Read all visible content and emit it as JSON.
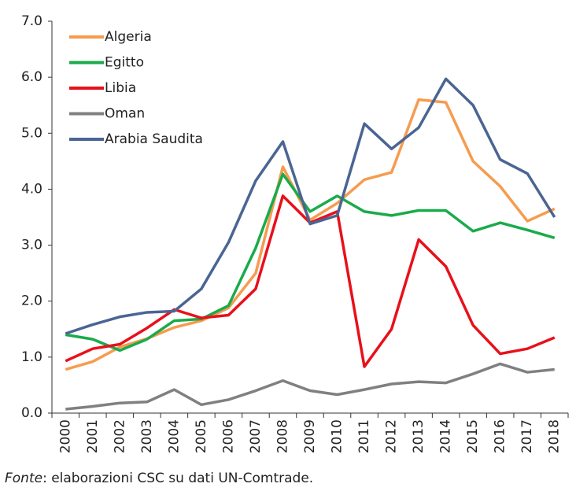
{
  "chart_data": {
    "type": "line",
    "x": [
      "2000",
      "2001",
      "2002",
      "2003",
      "2004",
      "2005",
      "2006",
      "2007",
      "2008",
      "2009",
      "2010",
      "2011",
      "2012",
      "2013",
      "2014",
      "2015",
      "2016",
      "2017",
      "2018"
    ],
    "series": [
      {
        "name": "Algeria",
        "color": "#f79b4f",
        "values": [
          0.78,
          0.92,
          1.18,
          1.33,
          1.53,
          1.65,
          1.88,
          2.5,
          4.4,
          3.45,
          3.75,
          4.17,
          4.3,
          5.6,
          5.55,
          4.5,
          4.05,
          3.43,
          3.65
        ]
      },
      {
        "name": "Egitto",
        "color": "#1aab4b",
        "values": [
          1.4,
          1.32,
          1.12,
          1.32,
          1.65,
          1.68,
          1.92,
          2.95,
          4.27,
          3.6,
          3.88,
          3.6,
          3.53,
          3.62,
          3.62,
          3.25,
          3.4,
          3.27,
          3.13
        ]
      },
      {
        "name": "Libia",
        "color": "#e8101a",
        "values": [
          0.93,
          1.15,
          1.23,
          1.52,
          1.85,
          1.7,
          1.75,
          2.22,
          3.88,
          3.4,
          3.6,
          0.83,
          1.5,
          3.1,
          2.62,
          1.57,
          1.06,
          1.15,
          1.35
        ]
      },
      {
        "name": "Oman",
        "color": "#808080",
        "values": [
          0.07,
          0.12,
          0.18,
          0.2,
          0.42,
          0.15,
          0.24,
          0.4,
          0.58,
          0.4,
          0.33,
          0.42,
          0.52,
          0.56,
          0.54,
          0.7,
          0.88,
          0.73,
          0.78
        ]
      },
      {
        "name": "Arabia Saudita",
        "color": "#4a6593",
        "values": [
          1.42,
          1.58,
          1.72,
          1.8,
          1.82,
          2.22,
          3.05,
          4.15,
          4.85,
          3.38,
          3.53,
          5.17,
          4.72,
          5.1,
          5.97,
          5.5,
          4.53,
          4.28,
          3.5
        ]
      }
    ],
    "ylim": [
      0,
      7
    ],
    "yticks": [
      {
        "value": 0,
        "label": "0.0"
      },
      {
        "value": 1,
        "label": "1.0"
      },
      {
        "value": 2,
        "label": "2.0"
      },
      {
        "value": 3,
        "label": "3.0"
      },
      {
        "value": 4,
        "label": "4.0"
      },
      {
        "value": 5,
        "label": "5.0"
      },
      {
        "value": 6,
        "label": "6.0"
      },
      {
        "value": 7,
        "label": "7.0"
      }
    ],
    "legend": "top-left",
    "source": {
      "label": "Fonte",
      "text": ": elaborazioni CSC su dati UN-Comtrade."
    }
  }
}
